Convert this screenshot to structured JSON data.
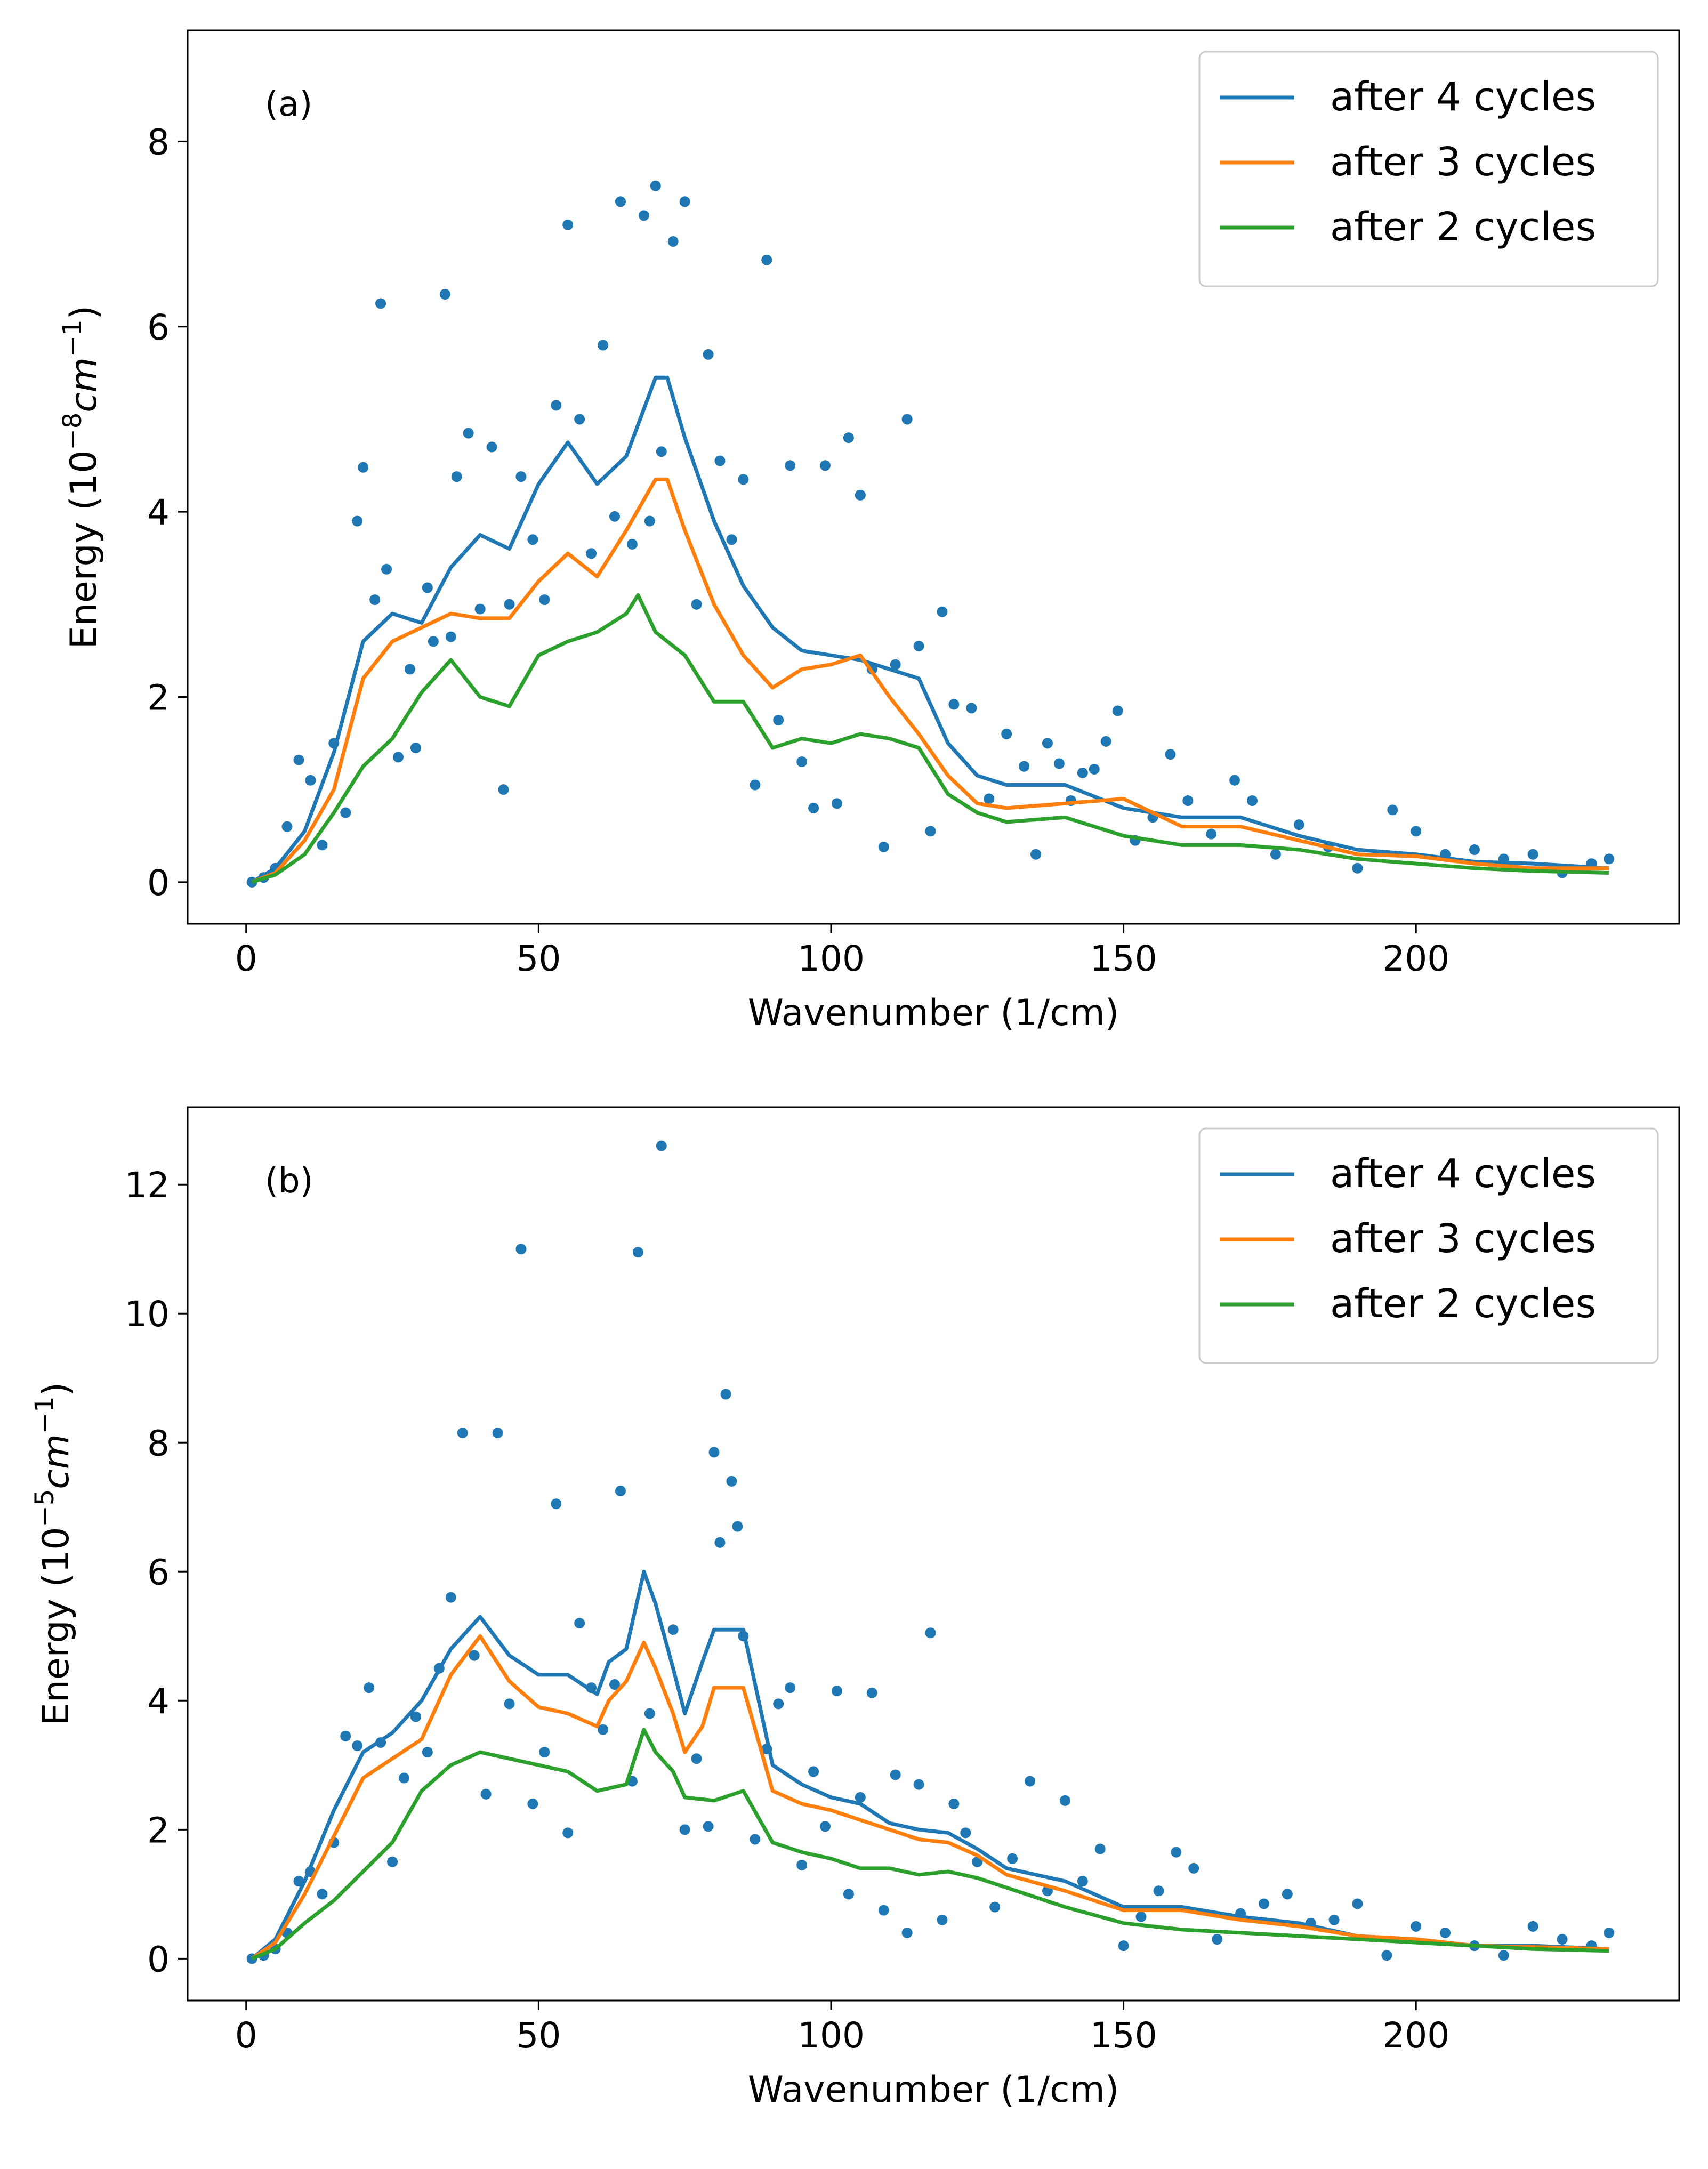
{
  "chart_data": [
    {
      "type": "line",
      "panel_label": "(a)",
      "xlabel": "Wavenumber (1/cm)",
      "ylabel_main": "Energy (10",
      "ylabel_exp": "−8",
      "ylabel_unit": "cm",
      "ylabel_unit_exp": "−1",
      "ylabel_close": ")",
      "xlim": [
        -10,
        245
      ],
      "ylim": [
        -0.45,
        9.2
      ],
      "xticks": [
        0,
        50,
        100,
        150,
        200
      ],
      "xtick_labels": [
        "0",
        "50",
        "100",
        "150",
        "200"
      ],
      "yticks": [
        0,
        2,
        4,
        6,
        8
      ],
      "ytick_labels": [
        "0",
        "2",
        "4",
        "6",
        "8"
      ],
      "legend_position": "upper right",
      "grid": false,
      "series": [
        {
          "name": "after 4 cycles",
          "color": "#1f77b4",
          "x": [
            1,
            5,
            10,
            15,
            20,
            25,
            30,
            35,
            40,
            45,
            50,
            55,
            60,
            65,
            70,
            72,
            75,
            80,
            85,
            90,
            95,
            100,
            105,
            110,
            115,
            120,
            125,
            130,
            140,
            150,
            160,
            170,
            180,
            190,
            200,
            210,
            220,
            233
          ],
          "y": [
            0.0,
            0.15,
            0.55,
            1.4,
            2.6,
            2.9,
            2.8,
            3.4,
            3.75,
            3.6,
            4.3,
            4.75,
            4.3,
            4.6,
            5.45,
            5.45,
            4.8,
            3.9,
            3.2,
            2.75,
            2.5,
            2.45,
            2.4,
            2.3,
            2.2,
            1.5,
            1.15,
            1.05,
            1.05,
            0.8,
            0.7,
            0.7,
            0.5,
            0.35,
            0.3,
            0.22,
            0.2,
            0.15
          ]
        },
        {
          "name": "after 3 cycles",
          "color": "#ff7f0e",
          "x": [
            1,
            5,
            10,
            15,
            20,
            25,
            30,
            35,
            40,
            45,
            50,
            55,
            60,
            65,
            70,
            72,
            75,
            80,
            85,
            90,
            95,
            100,
            105,
            110,
            115,
            120,
            125,
            130,
            140,
            150,
            160,
            170,
            180,
            190,
            200,
            210,
            220,
            233
          ],
          "y": [
            0.0,
            0.1,
            0.45,
            1.0,
            2.2,
            2.6,
            2.75,
            2.9,
            2.85,
            2.85,
            3.25,
            3.55,
            3.3,
            3.8,
            4.35,
            4.35,
            3.8,
            3.0,
            2.45,
            2.1,
            2.3,
            2.35,
            2.45,
            2.0,
            1.6,
            1.15,
            0.85,
            0.8,
            0.85,
            0.9,
            0.6,
            0.6,
            0.45,
            0.3,
            0.28,
            0.2,
            0.15,
            0.15
          ]
        },
        {
          "name": "after 2 cycles",
          "color": "#2ca02c",
          "x": [
            1,
            5,
            10,
            15,
            20,
            25,
            30,
            35,
            40,
            45,
            50,
            55,
            60,
            65,
            67,
            70,
            75,
            80,
            85,
            90,
            95,
            100,
            105,
            110,
            115,
            120,
            125,
            130,
            140,
            150,
            160,
            170,
            180,
            190,
            200,
            210,
            220,
            233
          ],
          "y": [
            0.0,
            0.08,
            0.3,
            0.75,
            1.25,
            1.55,
            2.05,
            2.4,
            2.0,
            1.9,
            2.45,
            2.6,
            2.7,
            2.9,
            3.1,
            2.7,
            2.45,
            1.95,
            1.95,
            1.45,
            1.55,
            1.5,
            1.6,
            1.55,
            1.45,
            0.95,
            0.75,
            0.65,
            0.7,
            0.5,
            0.4,
            0.4,
            0.35,
            0.25,
            0.2,
            0.15,
            0.12,
            0.1
          ]
        },
        {
          "name": "",
          "type": "scatter",
          "color": "#1f77b4",
          "x": [
            1,
            3,
            5,
            7,
            9,
            11,
            13,
            15,
            17,
            19,
            20,
            22,
            23,
            24,
            26,
            28,
            29,
            31,
            32,
            34,
            35,
            36,
            38,
            40,
            42,
            44,
            45,
            47,
            49,
            51,
            53,
            55,
            57,
            59,
            61,
            63,
            64,
            66,
            68,
            69,
            70,
            71,
            73,
            75,
            77,
            79,
            81,
            83,
            85,
            87,
            89,
            91,
            93,
            95,
            97,
            99,
            101,
            103,
            105,
            107,
            109,
            111,
            113,
            115,
            117,
            119,
            121,
            124,
            127,
            130,
            133,
            135,
            137,
            139,
            141,
            143,
            145,
            147,
            149,
            152,
            155,
            158,
            161,
            165,
            169,
            172,
            176,
            180,
            185,
            190,
            196,
            200,
            205,
            210,
            215,
            220,
            225,
            230,
            233
          ],
          "y": [
            0.0,
            0.05,
            0.15,
            0.6,
            1.32,
            1.1,
            0.4,
            1.5,
            0.75,
            3.9,
            4.48,
            3.05,
            6.25,
            3.38,
            1.35,
            2.3,
            1.45,
            3.18,
            2.6,
            6.35,
            2.65,
            4.38,
            4.85,
            2.95,
            4.7,
            1.0,
            3.0,
            4.38,
            3.7,
            3.05,
            5.15,
            7.1,
            5.0,
            3.55,
            5.8,
            3.95,
            7.35,
            3.65,
            7.2,
            3.9,
            7.52,
            4.65,
            6.92,
            7.35,
            3.0,
            5.7,
            4.55,
            3.7,
            4.35,
            1.05,
            6.72,
            1.75,
            4.5,
            1.3,
            0.8,
            4.5,
            0.85,
            4.8,
            4.18,
            2.3,
            0.38,
            2.35,
            5.0,
            2.55,
            0.55,
            2.92,
            1.92,
            1.88,
            0.9,
            1.6,
            1.25,
            0.3,
            1.5,
            1.28,
            0.88,
            1.18,
            1.22,
            1.52,
            1.85,
            0.45,
            0.7,
            1.38,
            0.88,
            0.52,
            1.1,
            0.88,
            0.3,
            0.62,
            0.38,
            0.15,
            0.78,
            0.55,
            0.3,
            0.35,
            0.25,
            0.3,
            0.1,
            0.2,
            0.25
          ]
        }
      ]
    },
    {
      "type": "line",
      "panel_label": "(b)",
      "xlabel": "Wavenumber (1/cm)",
      "ylabel_main": "Energy (10",
      "ylabel_exp": "−5",
      "ylabel_unit": "cm",
      "ylabel_unit_exp": "−1",
      "ylabel_close": ")",
      "xlim": [
        -10,
        245
      ],
      "ylim": [
        -0.65,
        13.2
      ],
      "xticks": [
        0,
        50,
        100,
        150,
        200
      ],
      "xtick_labels": [
        "0",
        "50",
        "100",
        "150",
        "200"
      ],
      "yticks": [
        0,
        2,
        4,
        6,
        8,
        10,
        12
      ],
      "ytick_labels": [
        "0",
        "2",
        "4",
        "6",
        "8",
        "10",
        "12"
      ],
      "legend_position": "upper right",
      "grid": false,
      "series": [
        {
          "name": "after 4 cycles",
          "color": "#1f77b4",
          "x": [
            1,
            5,
            10,
            15,
            20,
            25,
            30,
            35,
            40,
            45,
            50,
            55,
            60,
            62,
            65,
            68,
            70,
            73,
            75,
            78,
            80,
            85,
            90,
            95,
            100,
            105,
            110,
            115,
            120,
            125,
            130,
            140,
            150,
            160,
            170,
            180,
            190,
            200,
            210,
            220,
            233
          ],
          "y": [
            0.0,
            0.3,
            1.2,
            2.3,
            3.2,
            3.5,
            4.0,
            4.8,
            5.3,
            4.7,
            4.4,
            4.4,
            4.1,
            4.6,
            4.8,
            6.0,
            5.5,
            4.5,
            3.8,
            4.6,
            5.1,
            5.1,
            3.0,
            2.7,
            2.5,
            2.4,
            2.1,
            2.0,
            1.95,
            1.7,
            1.4,
            1.2,
            0.8,
            0.8,
            0.65,
            0.55,
            0.35,
            0.3,
            0.2,
            0.2,
            0.15
          ]
        },
        {
          "name": "after 3 cycles",
          "color": "#ff7f0e",
          "x": [
            1,
            5,
            10,
            15,
            20,
            25,
            30,
            35,
            40,
            45,
            50,
            55,
            60,
            62,
            65,
            68,
            70,
            73,
            75,
            78,
            80,
            85,
            90,
            95,
            100,
            105,
            110,
            115,
            120,
            125,
            130,
            140,
            150,
            160,
            170,
            180,
            190,
            200,
            210,
            220,
            233
          ],
          "y": [
            0.0,
            0.25,
            1.0,
            1.9,
            2.8,
            3.1,
            3.4,
            4.4,
            5.0,
            4.3,
            3.9,
            3.8,
            3.6,
            4.0,
            4.3,
            4.9,
            4.5,
            3.8,
            3.2,
            3.6,
            4.2,
            4.2,
            2.6,
            2.4,
            2.3,
            2.15,
            2.0,
            1.85,
            1.8,
            1.6,
            1.3,
            1.05,
            0.75,
            0.75,
            0.6,
            0.5,
            0.35,
            0.3,
            0.2,
            0.18,
            0.15
          ]
        },
        {
          "name": "after 2 cycles",
          "color": "#2ca02c",
          "x": [
            1,
            5,
            10,
            15,
            20,
            25,
            30,
            35,
            40,
            45,
            50,
            55,
            60,
            65,
            68,
            70,
            73,
            75,
            80,
            85,
            90,
            95,
            100,
            105,
            110,
            115,
            120,
            125,
            130,
            140,
            150,
            160,
            170,
            180,
            190,
            200,
            210,
            220,
            233
          ],
          "y": [
            0.0,
            0.15,
            0.55,
            0.9,
            1.35,
            1.8,
            2.6,
            3.0,
            3.2,
            3.1,
            3.0,
            2.9,
            2.6,
            2.7,
            3.55,
            3.2,
            2.9,
            2.5,
            2.45,
            2.6,
            1.8,
            1.65,
            1.55,
            1.4,
            1.4,
            1.3,
            1.35,
            1.25,
            1.1,
            0.8,
            0.55,
            0.45,
            0.4,
            0.35,
            0.3,
            0.25,
            0.2,
            0.15,
            0.12
          ]
        },
        {
          "name": "",
          "type": "scatter",
          "color": "#1f77b4",
          "x": [
            1,
            3,
            5,
            7,
            9,
            11,
            13,
            15,
            17,
            19,
            21,
            23,
            25,
            27,
            29,
            31,
            33,
            35,
            37,
            39,
            41,
            43,
            45,
            47,
            49,
            51,
            53,
            55,
            57,
            59,
            61,
            63,
            64,
            66,
            67,
            69,
            71,
            73,
            75,
            77,
            79,
            80,
            81,
            82,
            83,
            84,
            85,
            87,
            89,
            91,
            93,
            95,
            97,
            99,
            101,
            103,
            105,
            107,
            109,
            111,
            113,
            115,
            117,
            119,
            121,
            123,
            125,
            128,
            131,
            134,
            137,
            140,
            143,
            146,
            150,
            153,
            156,
            159,
            162,
            166,
            170,
            174,
            178,
            182,
            186,
            190,
            195,
            200,
            205,
            210,
            215,
            220,
            225,
            230,
            233
          ],
          "y": [
            0.0,
            0.05,
            0.15,
            0.4,
            1.2,
            1.35,
            1.0,
            1.8,
            3.45,
            3.3,
            4.2,
            3.35,
            1.5,
            2.8,
            3.75,
            3.2,
            4.5,
            5.6,
            8.15,
            4.7,
            2.55,
            8.15,
            3.95,
            11.0,
            2.4,
            3.2,
            7.05,
            1.95,
            5.2,
            4.2,
            3.55,
            4.25,
            7.25,
            2.75,
            10.95,
            3.8,
            12.6,
            5.1,
            2.0,
            3.1,
            2.05,
            7.85,
            6.45,
            8.75,
            7.4,
            6.7,
            5.0,
            1.85,
            3.25,
            3.95,
            4.2,
            1.45,
            2.9,
            2.05,
            4.15,
            1.0,
            2.5,
            4.12,
            0.75,
            2.85,
            0.4,
            2.7,
            5.05,
            0.6,
            2.4,
            1.95,
            1.5,
            0.8,
            1.55,
            2.75,
            1.05,
            2.45,
            1.2,
            1.7,
            0.2,
            0.65,
            1.05,
            1.65,
            1.4,
            0.3,
            0.7,
            0.85,
            1.0,
            0.55,
            0.6,
            0.85,
            0.05,
            0.5,
            0.4,
            0.2,
            0.05,
            0.5,
            0.3,
            0.2,
            0.4
          ]
        }
      ]
    }
  ]
}
